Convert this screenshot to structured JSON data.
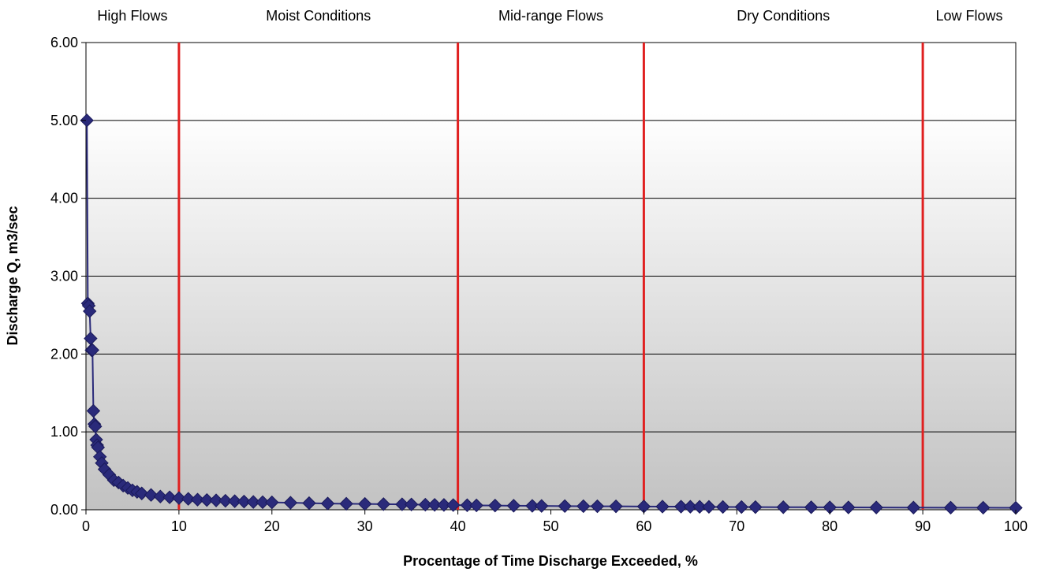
{
  "chart_data": {
    "type": "scatter",
    "xlabel": "Procentage of Time Discharge Exceeded, %",
    "ylabel": "Discharge Q, m3/sec",
    "xlim": [
      0,
      100
    ],
    "ylim": [
      0,
      6
    ],
    "x_ticks": [
      "0",
      "10",
      "20",
      "30",
      "40",
      "50",
      "60",
      "70",
      "80",
      "90",
      "100"
    ],
    "y_ticks": [
      "0.00",
      "1.00",
      "2.00",
      "3.00",
      "4.00",
      "5.00",
      "6.00"
    ],
    "grid": "horizontal",
    "background": "vertical gradient white to gray",
    "series_color": "#2a2a7a",
    "divider_color": "#e02020",
    "dividers": [
      10,
      40,
      60,
      90
    ],
    "regions": [
      {
        "label": "High Flows",
        "x": 5
      },
      {
        "label": "Moist Conditions",
        "x": 25
      },
      {
        "label": "Mid-range Flows",
        "x": 50
      },
      {
        "label": "Dry Conditions",
        "x": 75
      },
      {
        "label": "Low Flows",
        "x": 95
      }
    ],
    "series": [
      {
        "x": [
          0.1,
          0.2,
          0.3,
          0.4,
          0.5,
          0.6,
          0.7,
          0.8,
          0.9,
          1.0,
          1.1,
          1.2,
          1.3,
          1.5,
          1.7,
          2.0,
          2.5,
          3.0,
          3.5,
          4.0,
          4.5,
          5.0,
          5.5,
          6.0,
          7.0,
          8.0,
          9.0,
          10,
          11,
          12,
          13,
          14,
          15,
          16,
          17,
          18,
          19,
          20,
          22,
          24,
          26,
          28,
          30,
          32,
          34,
          35,
          36.5,
          37.5,
          38.5,
          39.5,
          41,
          42,
          44,
          46,
          48,
          49,
          51.5,
          53.5,
          55,
          57,
          60,
          62,
          64,
          65,
          66,
          67,
          68.5,
          70.5,
          72,
          75,
          78,
          80,
          82,
          85,
          89,
          93,
          96.5,
          100
        ],
        "y": [
          5.0,
          2.65,
          2.62,
          2.55,
          2.2,
          2.05,
          2.05,
          1.27,
          1.1,
          1.07,
          0.9,
          0.83,
          0.8,
          0.68,
          0.6,
          0.52,
          0.45,
          0.38,
          0.35,
          0.31,
          0.28,
          0.25,
          0.23,
          0.21,
          0.19,
          0.17,
          0.16,
          0.15,
          0.14,
          0.13,
          0.125,
          0.12,
          0.115,
          0.11,
          0.105,
          0.1,
          0.097,
          0.095,
          0.09,
          0.085,
          0.08,
          0.077,
          0.075,
          0.072,
          0.07,
          0.068,
          0.065,
          0.063,
          0.062,
          0.06,
          0.058,
          0.056,
          0.054,
          0.052,
          0.05,
          0.049,
          0.047,
          0.046,
          0.045,
          0.044,
          0.042,
          0.041,
          0.04,
          0.039,
          0.038,
          0.037,
          0.036,
          0.035,
          0.034,
          0.033,
          0.032,
          0.031,
          0.03,
          0.029,
          0.028,
          0.027,
          0.026,
          0.025
        ]
      }
    ]
  }
}
